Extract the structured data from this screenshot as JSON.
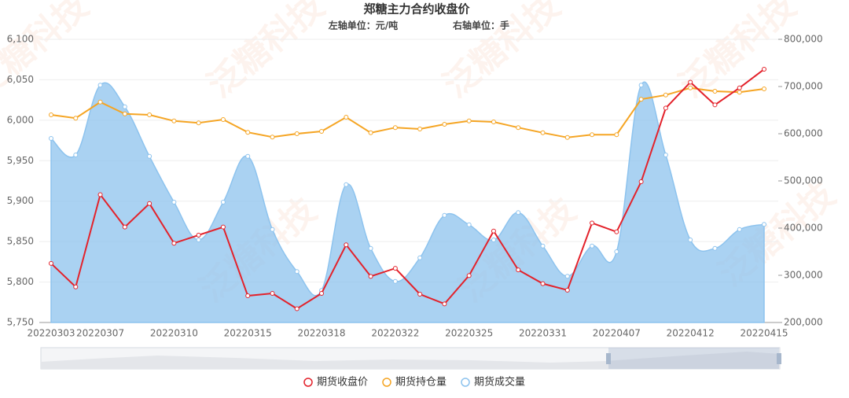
{
  "chart_data": {
    "type": "line",
    "title": "郑糖主力合约收盘价",
    "subtitle_left": "左轴单位：元/吨",
    "subtitle_right": "右轴单位：手",
    "watermark": "泛糖科技",
    "categories": [
      "20220303",
      null,
      "20220307",
      null,
      null,
      "20220310",
      null,
      null,
      "20220315",
      null,
      null,
      "20220318",
      null,
      null,
      "20220322",
      null,
      null,
      "20220325",
      null,
      null,
      "20220331",
      null,
      null,
      "20220407",
      null,
      null,
      "20220412",
      null,
      null,
      "20220415"
    ],
    "series": [
      {
        "name": "期货收盘价",
        "color": "#e3222b",
        "axis": "y",
        "values": [
          5823,
          5794,
          5908,
          5868,
          5897,
          5848,
          5858,
          5868,
          5783,
          5786,
          5767,
          5786,
          5846,
          5807,
          5817,
          5785,
          5773,
          5808,
          5863,
          5815,
          5798,
          5790,
          5873,
          5862,
          5924,
          6015,
          6047,
          6019,
          6040,
          6063
        ]
      },
      {
        "name": "期货持仓量",
        "color": "#f5a524",
        "axis": "y2",
        "values": [
          640000,
          633000,
          667000,
          642000,
          640000,
          627000,
          623000,
          630000,
          603000,
          593000,
          600000,
          605000,
          635000,
          602000,
          613000,
          610000,
          620000,
          627000,
          625000,
          613000,
          602000,
          592000,
          598000,
          598000,
          673000,
          682000,
          697000,
          690000,
          688000,
          695000
        ]
      },
      {
        "name": "期货成交量",
        "color": "#8dc3ee",
        "axis": "y2",
        "area": true,
        "smooth": true,
        "values": [
          590000,
          555000,
          703000,
          657000,
          552000,
          455000,
          375000,
          455000,
          552000,
          397000,
          308000,
          268000,
          492000,
          357000,
          287000,
          337000,
          427000,
          407000,
          375000,
          433000,
          362000,
          298000,
          362000,
          350000,
          703000,
          555000,
          375000,
          357000,
          397000,
          408000
        ]
      }
    ],
    "ylim": [
      5750,
      6100
    ],
    "yticks": [
      {
        "value": 5750,
        "label": "5,750"
      },
      {
        "value": 5800,
        "label": "5,800"
      },
      {
        "value": 5850,
        "label": "5,850"
      },
      {
        "value": 5900,
        "label": "5,900"
      },
      {
        "value": 5950,
        "label": "5,950"
      },
      {
        "value": 6000,
        "label": "6,000"
      },
      {
        "value": 6050,
        "label": "6,050"
      },
      {
        "value": 6100,
        "label": "6,100"
      }
    ],
    "y2lim": [
      200000,
      800000
    ],
    "y2ticks": [
      {
        "value": 200000,
        "label": "200,000"
      },
      {
        "value": 300000,
        "label": "300,000"
      },
      {
        "value": 400000,
        "label": "400,000"
      },
      {
        "value": 500000,
        "label": "500,000"
      },
      {
        "value": 600000,
        "label": "600,000"
      },
      {
        "value": 700000,
        "label": "700,000"
      },
      {
        "value": 800000,
        "label": "800,000"
      }
    ],
    "grid": true
  }
}
